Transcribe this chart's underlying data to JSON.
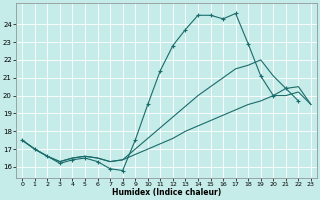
{
  "xlabel": "Humidex (Indice chaleur)",
  "background_color": "#c5ece8",
  "grid_color": "#b8d8d4",
  "line_color": "#1a6b6b",
  "xlim": [
    -0.5,
    23.5
  ],
  "ylim": [
    15.4,
    25.2
  ],
  "yticks": [
    16,
    17,
    18,
    19,
    20,
    21,
    22,
    23,
    24
  ],
  "xticks": [
    0,
    1,
    2,
    3,
    4,
    5,
    6,
    7,
    8,
    9,
    10,
    11,
    12,
    13,
    14,
    15,
    16,
    17,
    18,
    19,
    20,
    21,
    22,
    23
  ],
  "main_x": [
    0,
    1,
    2,
    3,
    4,
    5,
    6,
    7,
    8,
    9,
    10,
    11,
    12,
    13,
    14,
    15,
    16,
    17,
    18,
    19,
    20,
    21,
    22
  ],
  "main_y": [
    17.5,
    17.0,
    16.6,
    16.2,
    16.4,
    16.5,
    16.3,
    15.9,
    15.8,
    17.5,
    19.5,
    21.4,
    22.8,
    23.7,
    24.5,
    24.5,
    24.3,
    24.6,
    22.9,
    21.1,
    20.0,
    20.4,
    19.7
  ],
  "upper_x": [
    0,
    1,
    2,
    3,
    4,
    5,
    6,
    7,
    8,
    9,
    10,
    11,
    12,
    13,
    14,
    15,
    16,
    17,
    18,
    19,
    20,
    21,
    22,
    23
  ],
  "upper_y": [
    17.5,
    17.0,
    16.6,
    16.3,
    16.5,
    16.6,
    16.5,
    16.3,
    16.4,
    17.0,
    17.6,
    18.2,
    18.8,
    19.4,
    20.0,
    20.5,
    21.0,
    21.5,
    21.7,
    22.0,
    21.1,
    20.4,
    20.5,
    19.5
  ],
  "lower_x": [
    0,
    1,
    2,
    3,
    4,
    5,
    6,
    7,
    8,
    9,
    10,
    11,
    12,
    13,
    14,
    15,
    16,
    17,
    18,
    19,
    20,
    21,
    22,
    23
  ],
  "lower_y": [
    17.5,
    17.0,
    16.6,
    16.3,
    16.5,
    16.6,
    16.5,
    16.3,
    16.4,
    16.7,
    17.0,
    17.3,
    17.6,
    18.0,
    18.3,
    18.6,
    18.9,
    19.2,
    19.5,
    19.7,
    20.0,
    20.0,
    20.2,
    19.5
  ]
}
